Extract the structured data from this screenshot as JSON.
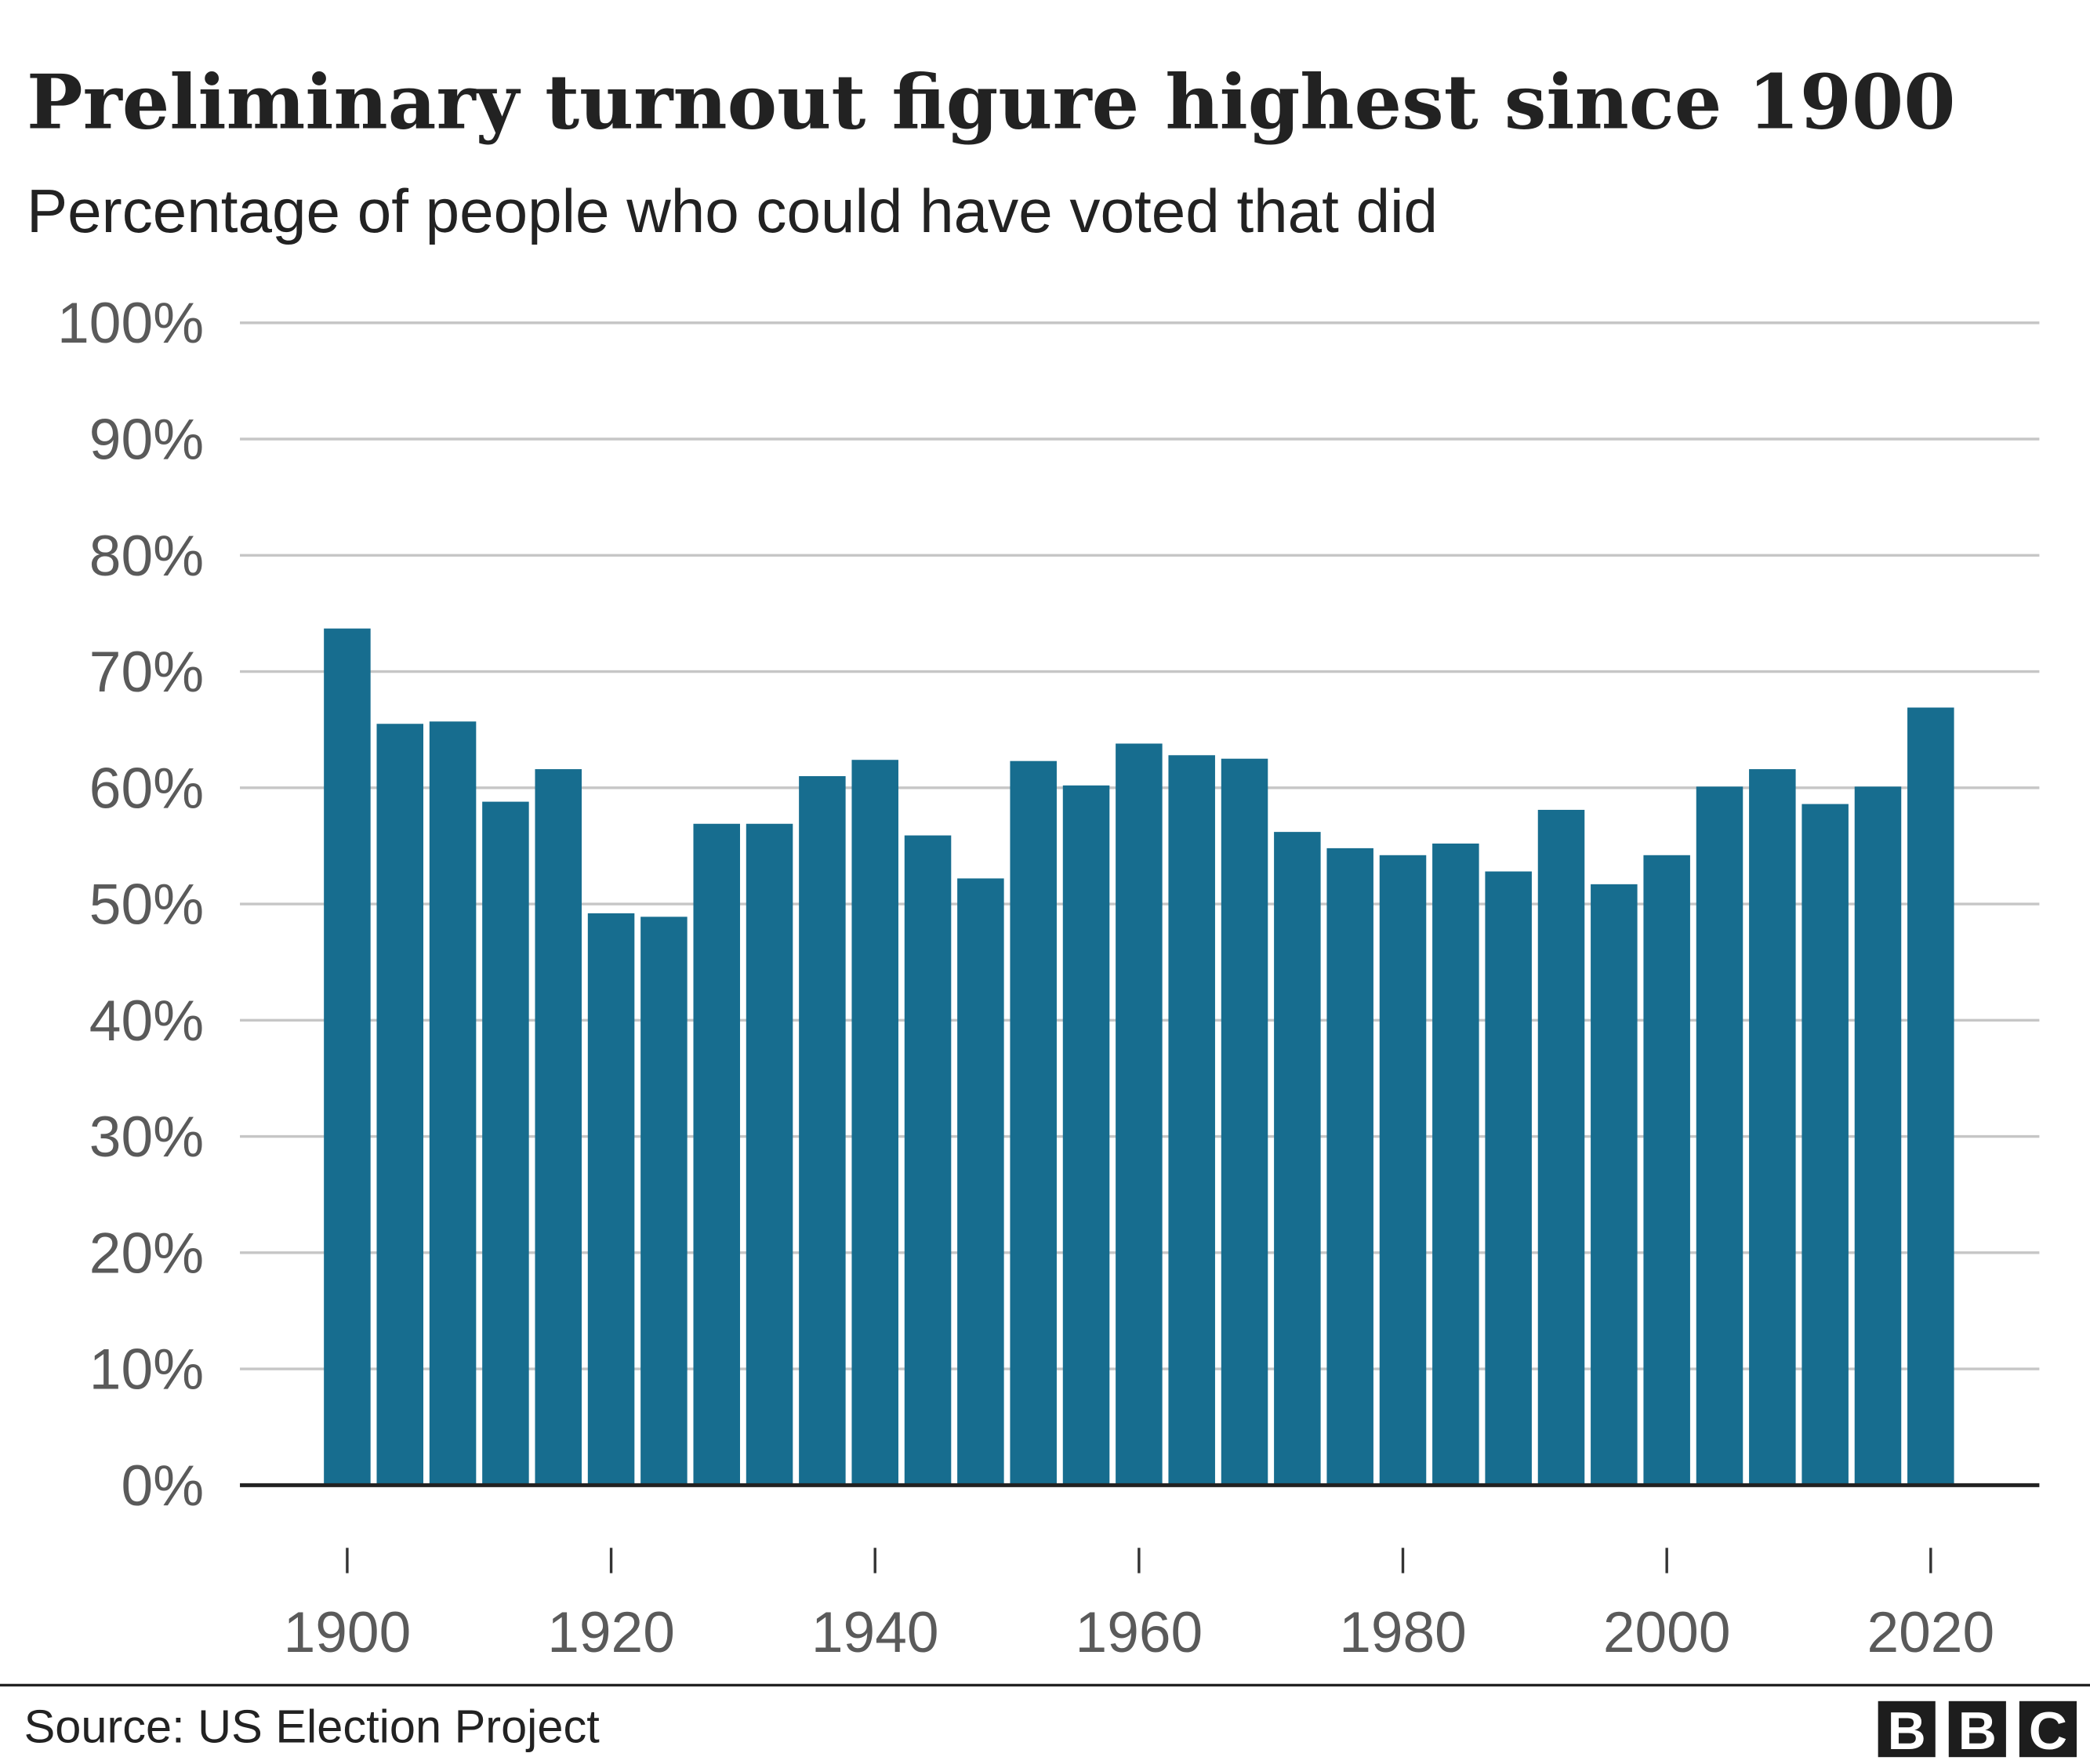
{
  "chart_data": {
    "type": "bar",
    "title": "Preliminary turnout figure highest since 1900",
    "subtitle": "Percentage of people who could have voted that did",
    "xlabel": "",
    "ylabel": "",
    "ylim": [
      0,
      100
    ],
    "grid": true,
    "bar_color": "#176d8f",
    "categories": [
      1900,
      1904,
      1908,
      1912,
      1916,
      1920,
      1924,
      1928,
      1932,
      1936,
      1940,
      1944,
      1948,
      1952,
      1956,
      1960,
      1964,
      1968,
      1972,
      1976,
      1980,
      1984,
      1988,
      1992,
      1996,
      2000,
      2004,
      2008,
      2012,
      2016,
      2020
    ],
    "values": [
      73.7,
      65.5,
      65.7,
      58.8,
      61.6,
      49.2,
      48.9,
      56.9,
      56.9,
      61.0,
      62.4,
      55.9,
      52.2,
      62.3,
      60.2,
      63.8,
      62.8,
      62.5,
      56.2,
      54.8,
      54.2,
      55.2,
      52.8,
      58.1,
      51.7,
      54.2,
      60.1,
      61.6,
      58.6,
      60.1,
      66.9
    ],
    "y_ticks": [
      "0%",
      "10%",
      "20%",
      "30%",
      "40%",
      "50%",
      "60%",
      "70%",
      "80%",
      "90%",
      "100%"
    ],
    "x_ticks": [
      "1900",
      "1920",
      "1940",
      "1960",
      "1980",
      "2000",
      "2020"
    ]
  },
  "footer": {
    "source": "Source: US Election Project",
    "logo": "BBC"
  }
}
